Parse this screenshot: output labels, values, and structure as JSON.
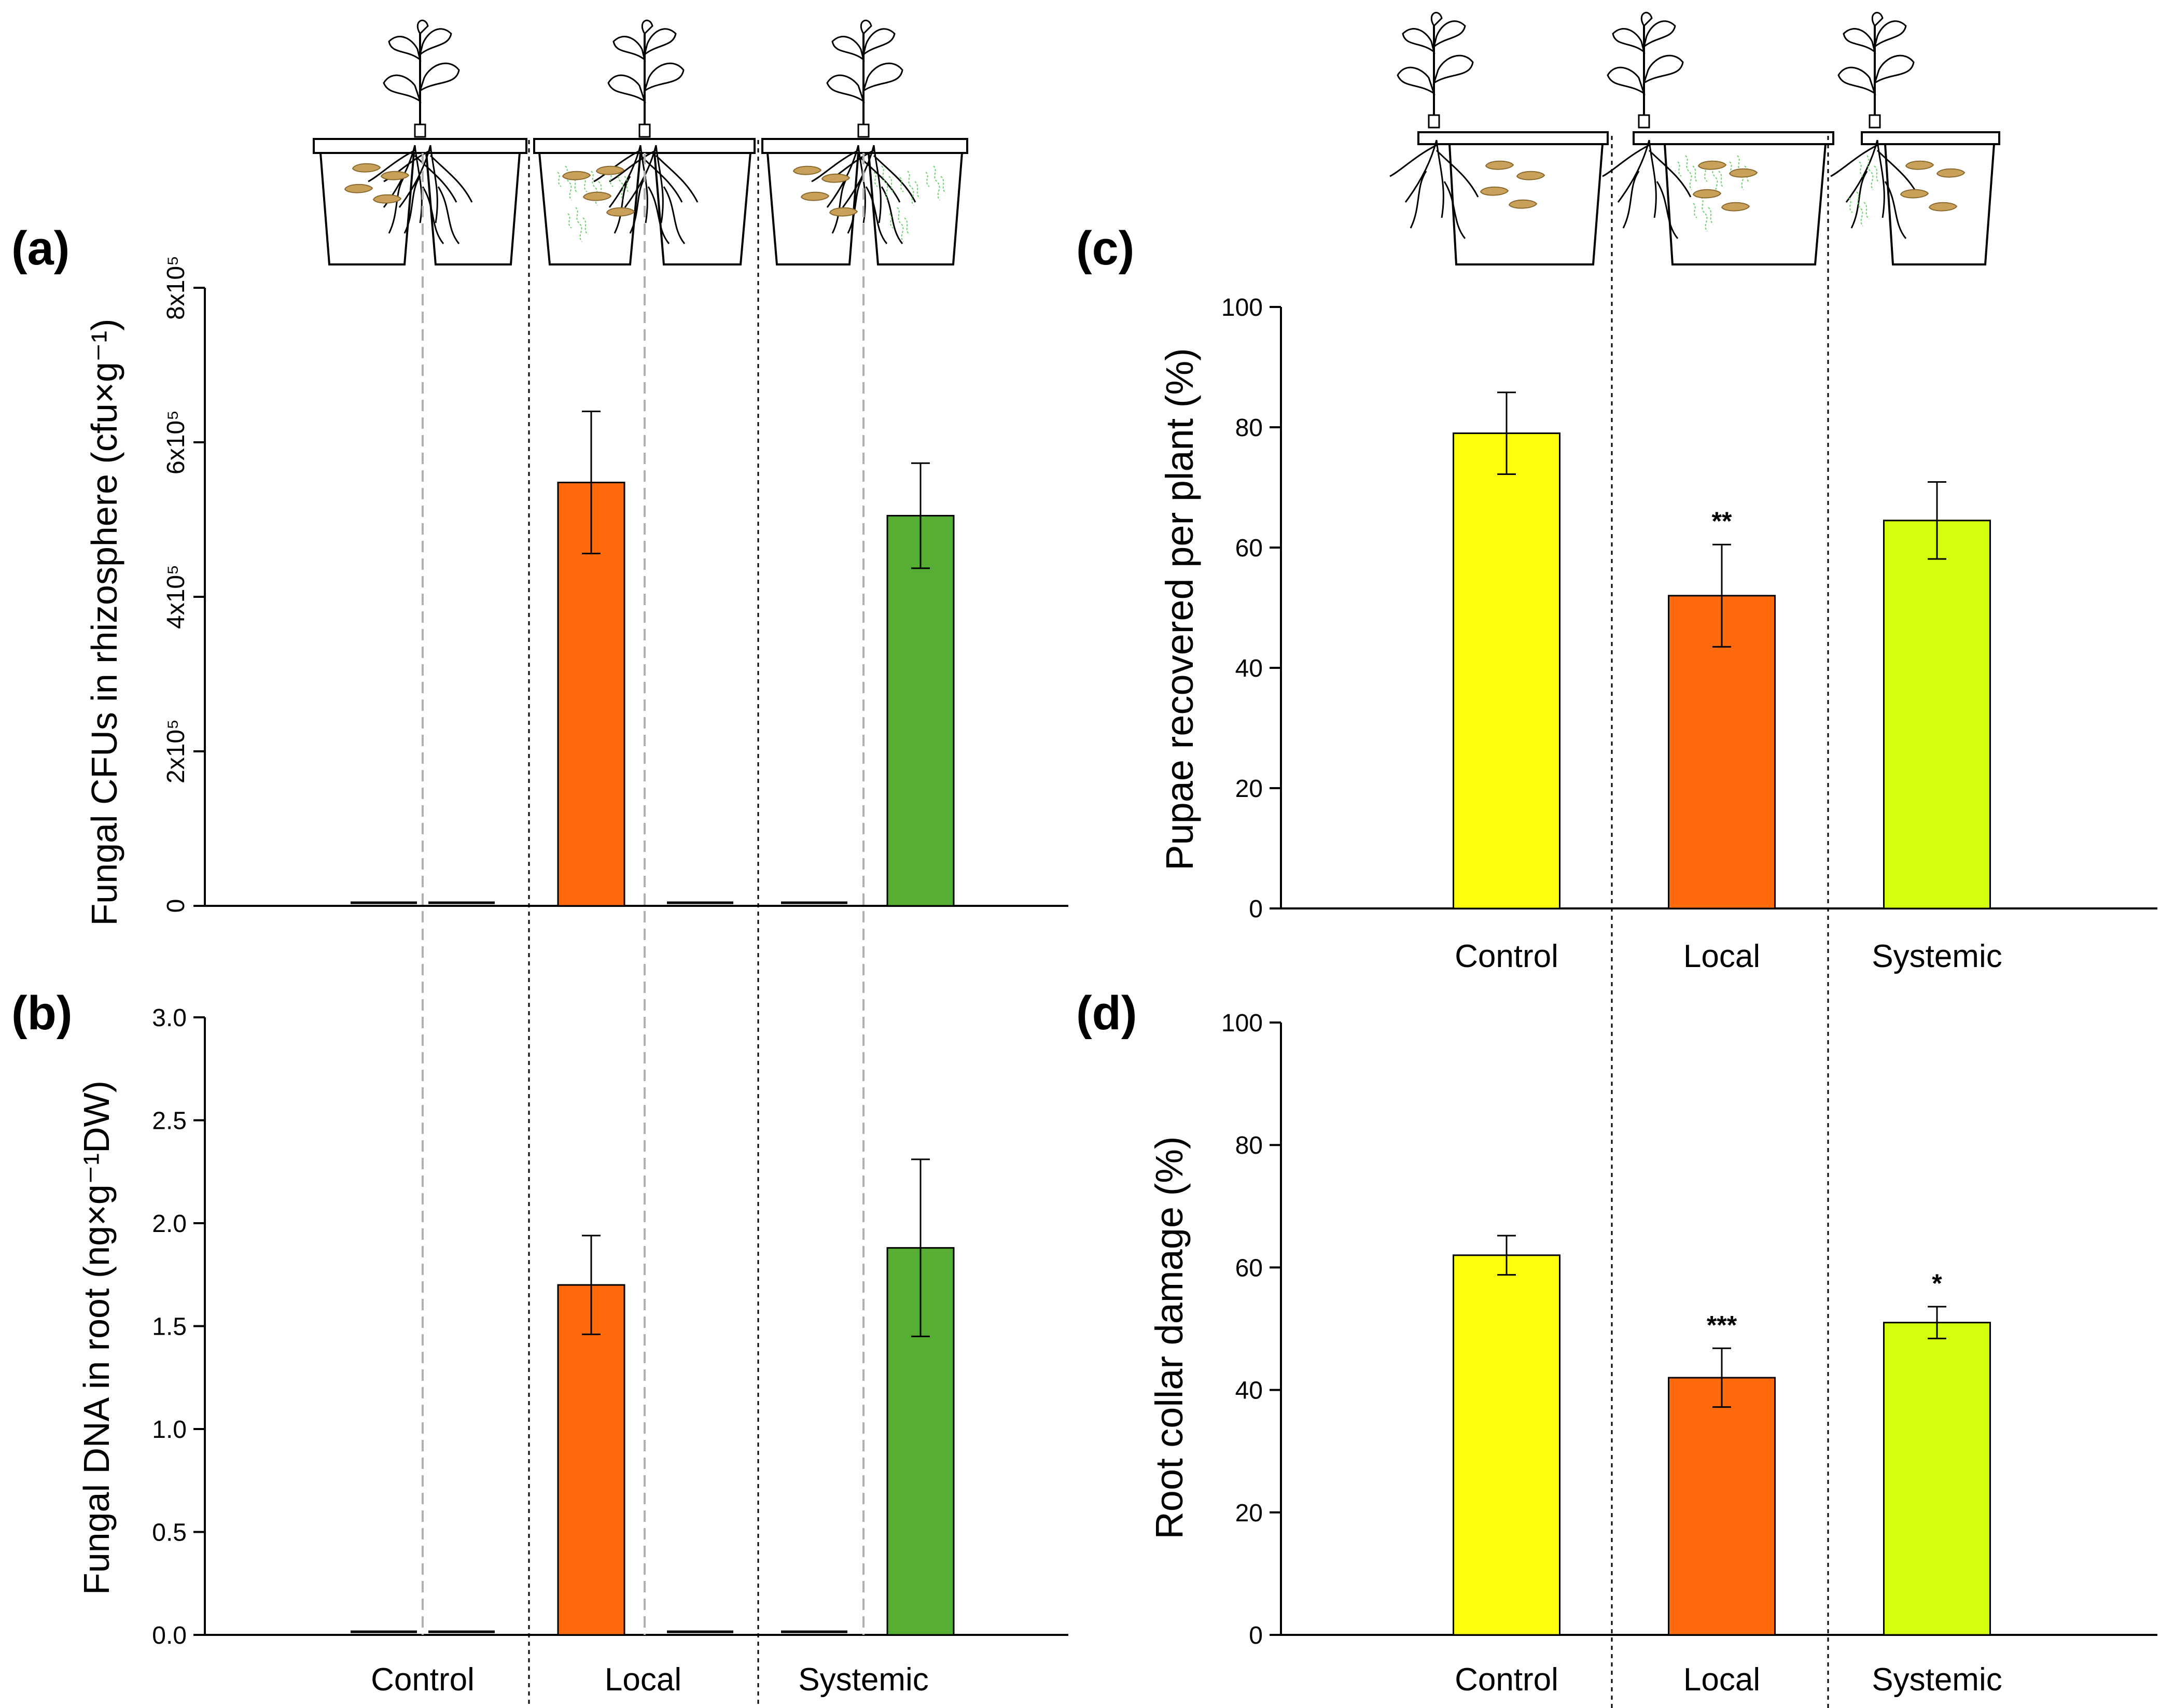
{
  "figure": {
    "panel_labels": [
      "(a)",
      "(b)",
      "(c)",
      "(d)"
    ],
    "colors": {
      "control_ab": "#1a1a1a",
      "local_ab": "#ff6a0d",
      "systemic_ab": "#56ae32",
      "control_cd": "#ffff0d",
      "local_cd": "#ff6a0d",
      "systemic_cd": "#d4ff0d",
      "guide_line": "#b0b0b0",
      "divider_line": "#000000"
    }
  },
  "chart_data": [
    {
      "id": "a",
      "type": "bar",
      "title": "",
      "ylabel": "Fungal CFUs in rhizosphere (cfu×g⁻¹)",
      "ylim": [
        0,
        800000
      ],
      "ytick_values": [
        0,
        200000,
        400000,
        600000,
        800000
      ],
      "ytick_labels": [
        "0",
        "2x10⁵",
        "4x10⁵",
        "6x10⁵",
        "8x10⁵"
      ],
      "groups": [
        "Control",
        "Local",
        "Systemic"
      ],
      "bars": [
        {
          "group": "Control",
          "side": "left",
          "value": 5000,
          "error": 0
        },
        {
          "group": "Control",
          "side": "right",
          "value": 5000,
          "error": 0
        },
        {
          "group": "Local",
          "side": "left",
          "value": 548000,
          "error": 92000
        },
        {
          "group": "Local",
          "side": "right",
          "value": 5000,
          "error": 0
        },
        {
          "group": "Systemic",
          "side": "left",
          "value": 5000,
          "error": 0
        },
        {
          "group": "Systemic",
          "side": "right",
          "value": 505000,
          "error": 68000
        }
      ]
    },
    {
      "id": "b",
      "type": "bar",
      "title": "",
      "ylabel": "Fungal DNA in root (ng×g⁻¹DW)",
      "xlabel": "",
      "ylim": [
        0,
        3.0
      ],
      "ytick_values": [
        0,
        0.5,
        1.0,
        1.5,
        2.0,
        2.5,
        3.0
      ],
      "ytick_labels": [
        "0.0",
        "0.5",
        "1.0",
        "1.5",
        "2.0",
        "2.5",
        "3.0"
      ],
      "groups": [
        "Control",
        "Local",
        "Systemic"
      ],
      "bars": [
        {
          "group": "Control",
          "side": "left",
          "value": 0.02,
          "error": 0
        },
        {
          "group": "Control",
          "side": "right",
          "value": 0.015,
          "error": 0
        },
        {
          "group": "Local",
          "side": "left",
          "value": 1.7,
          "error": 0.24
        },
        {
          "group": "Local",
          "side": "right",
          "value": 0.02,
          "error": 0
        },
        {
          "group": "Systemic",
          "side": "left",
          "value": 0.015,
          "error": 0
        },
        {
          "group": "Systemic",
          "side": "right",
          "value": 1.88,
          "error": 0.43
        }
      ]
    },
    {
      "id": "c",
      "type": "bar",
      "title": "",
      "ylabel": "Pupae recovered per plant (%)",
      "ylim": [
        0,
        100
      ],
      "ytick_values": [
        0,
        20,
        40,
        60,
        80,
        100
      ],
      "ytick_labels": [
        "0",
        "20",
        "40",
        "60",
        "80",
        "100"
      ],
      "categories": [
        "Control",
        "Local",
        "Systemic"
      ],
      "values": [
        79,
        52,
        64.5
      ],
      "errors": [
        6.8,
        8.5,
        6.4
      ],
      "significance": [
        "",
        "**",
        ""
      ]
    },
    {
      "id": "d",
      "type": "bar",
      "title": "",
      "ylabel": "Root collar damage (%)",
      "ylim": [
        0,
        100
      ],
      "ytick_values": [
        0,
        20,
        40,
        60,
        80,
        100
      ],
      "ytick_labels": [
        "0",
        "20",
        "40",
        "60",
        "80",
        "100"
      ],
      "categories": [
        "Control",
        "Local",
        "Systemic"
      ],
      "values": [
        62,
        42,
        51
      ],
      "errors": [
        3.2,
        4.8,
        2.6
      ],
      "significance": [
        "",
        "***",
        "*"
      ]
    }
  ]
}
